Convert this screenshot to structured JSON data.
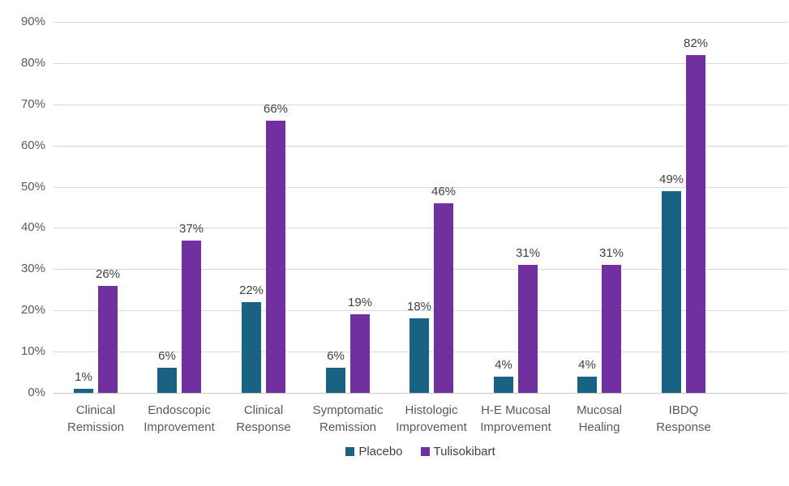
{
  "chart_data": {
    "type": "bar",
    "title": "",
    "categories": [
      "Clinical\nRemission",
      "Endoscopic\nImprovement",
      "Clinical\nResponse",
      "Symptomatic\nRemission",
      "Histologic\nImprovement",
      "H-E Mucosal\nImprovement",
      "Mucosal\nHealing",
      "IBDQ\nResponse"
    ],
    "series": [
      {
        "name": "Placebo",
        "color": "#1a6284",
        "values": [
          1,
          6,
          22,
          6,
          18,
          4,
          4,
          49
        ]
      },
      {
        "name": "Tulisokibart",
        "color": "#7030a0",
        "values": [
          26,
          37,
          66,
          19,
          46,
          31,
          31,
          82
        ]
      }
    ],
    "data_label_suffix": "%",
    "y_axis": {
      "min": 0,
      "max": 90,
      "step": 10,
      "tick_suffix": "%"
    },
    "grid": true,
    "legend_position": "bottom",
    "colors": {
      "gridline": "#d9d9d9",
      "axis_line": "#c6c6c6",
      "tick_label": "#595959",
      "category_label": "#595959",
      "value_label": "#404040",
      "legend_label": "#404040",
      "background": "#ffffff"
    }
  }
}
